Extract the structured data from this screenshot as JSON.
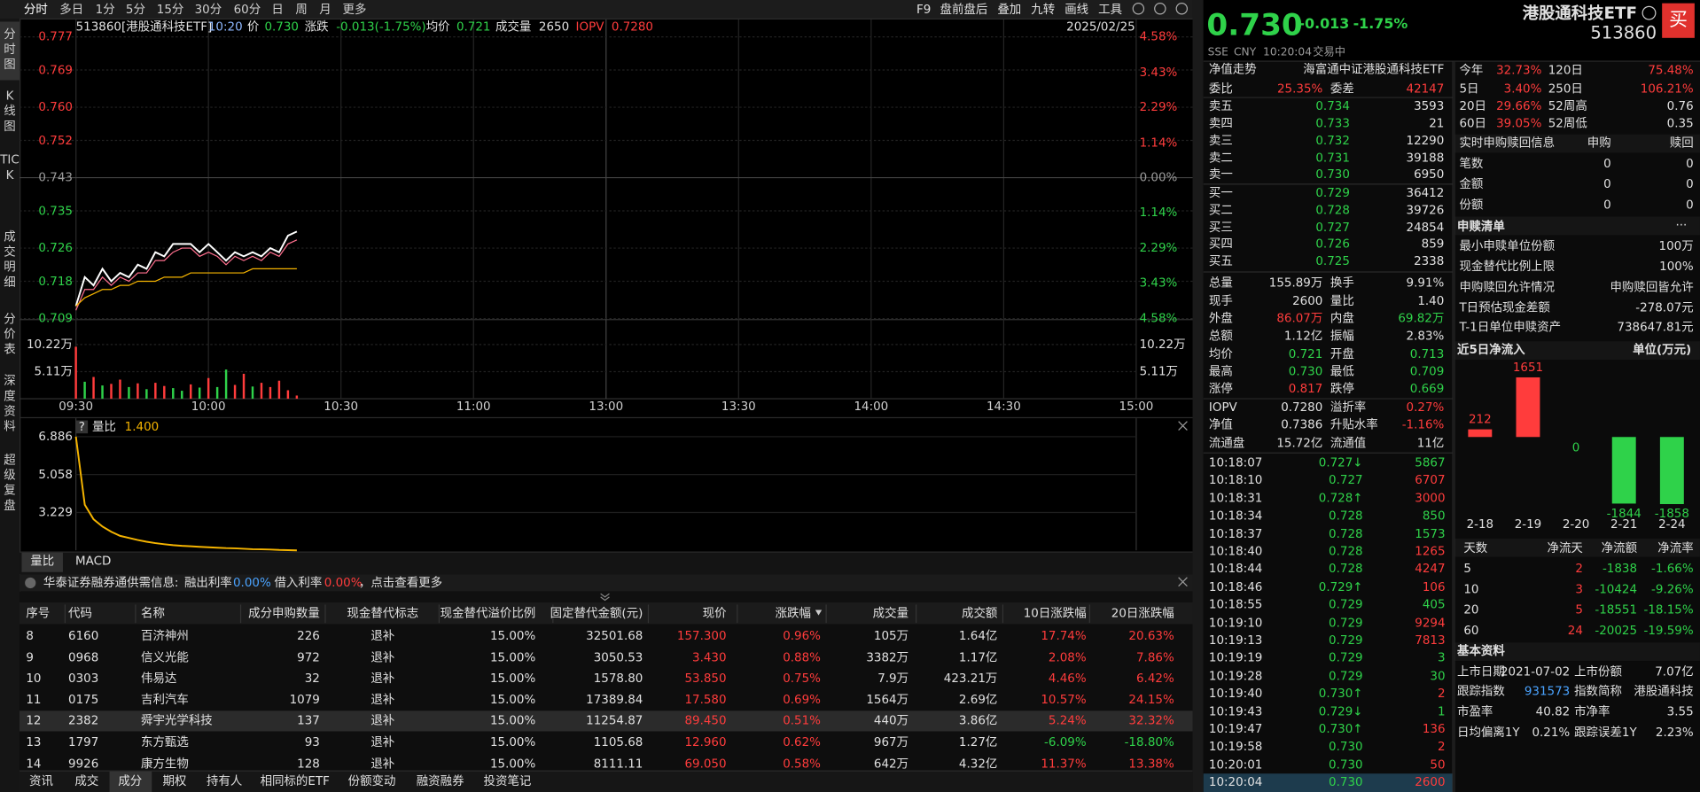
{
  "toolbar": {
    "periods": [
      "分时",
      "多日",
      "1分",
      "5分",
      "15分",
      "30分",
      "60分",
      "日",
      "周",
      "月",
      "更多"
    ],
    "tools": [
      "F9",
      "盘前盘后",
      "叠加",
      "九转",
      "画线",
      "工具"
    ]
  },
  "side_tabs": [
    "分时图",
    "K线图",
    "TICK",
    "成交明细",
    "分价表",
    "深度资料",
    "超级复盘"
  ],
  "quote_bar": {
    "items": [
      "513860[港股通科技ETF]",
      "10:20",
      "价",
      "0.730",
      "涨跌",
      "-0.013(-1.75%)",
      "均价",
      "0.721",
      "成交量",
      "2650",
      "IOPV",
      "0.7280"
    ],
    "date": "2025/02/25"
  },
  "chart_data": [
    {
      "type": "line",
      "grid": true,
      "x": [
        0,
        2,
        4,
        6,
        8,
        10,
        12,
        14,
        16,
        18,
        20,
        22,
        24,
        26,
        28,
        30,
        32,
        34,
        36,
        38,
        40,
        42,
        44,
        46,
        48,
        50
      ],
      "series": [
        {
          "color": "#ffffff",
          "values": [
            0.712,
            0.719,
            0.717,
            0.721,
            0.718,
            0.72,
            0.719,
            0.722,
            0.721,
            0.725,
            0.724,
            0.727,
            0.727,
            0.727,
            0.725,
            0.727,
            0.725,
            0.723,
            0.725,
            0.724,
            0.725,
            0.724,
            0.726,
            0.725,
            0.729,
            0.73
          ]
        },
        {
          "color": "#ff6f8e",
          "values": [
            0.711,
            0.716,
            0.716,
            0.719,
            0.717,
            0.719,
            0.718,
            0.72,
            0.72,
            0.723,
            0.723,
            0.725,
            0.726,
            0.726,
            0.724,
            0.725,
            0.724,
            0.722,
            0.724,
            0.723,
            0.724,
            0.723,
            0.725,
            0.724,
            0.727,
            0.728
          ]
        },
        {
          "color": "#f5b400",
          "values": [
            0.712,
            0.714,
            0.715,
            0.716,
            0.716,
            0.717,
            0.717,
            0.718,
            0.718,
            0.718,
            0.719,
            0.719,
            0.719,
            0.72,
            0.72,
            0.72,
            0.72,
            0.72,
            0.72,
            0.72,
            0.721,
            0.721,
            0.721,
            0.721,
            0.721,
            0.721
          ]
        }
      ],
      "xlim": [
        0,
        240
      ],
      "xticks": [
        {
          "value": 0,
          "label": "09:30"
        },
        {
          "value": 30,
          "label": "10:00"
        },
        {
          "value": 60,
          "label": "10:30"
        },
        {
          "value": 90,
          "label": "11:00"
        },
        {
          "value": 120,
          "label": "13:00"
        },
        {
          "value": 150,
          "label": "13:30"
        },
        {
          "value": 180,
          "label": "14:00"
        },
        {
          "value": 210,
          "label": "14:30"
        },
        {
          "value": 240,
          "label": "15:00"
        }
      ],
      "ylim": [
        0.709,
        0.777
      ],
      "yticks": [
        0.709,
        0.718,
        0.726,
        0.735,
        0.743,
        0.752,
        {
          "value": 0.76,
          "label": "0.760"
        },
        0.769,
        0.777
      ],
      "y2lim": [
        -4.58,
        4.58
      ],
      "y2ticks": [
        {
          "value": -4.58,
          "label": "4.58%"
        },
        {
          "value": -3.43,
          "label": "3.43%"
        },
        {
          "value": -2.29,
          "label": "2.29%"
        },
        {
          "value": -1.14,
          "label": "1.14%"
        },
        {
          "value": 0,
          "label": "0.00%"
        },
        {
          "value": 1.14,
          "label": "1.14%"
        },
        {
          "value": 2.29,
          "label": "2.29%"
        },
        {
          "value": 3.43,
          "label": "3.43%"
        },
        {
          "value": 4.58,
          "label": "4.58%"
        }
      ]
    },
    {
      "type": "bar",
      "x": [
        0,
        2,
        4,
        6,
        8,
        10,
        12,
        14,
        16,
        18,
        20,
        22,
        24,
        26,
        28,
        30,
        32,
        34,
        36,
        38,
        40,
        42,
        44,
        46,
        48,
        50
      ],
      "series": [
        {
          "color": "#ff3c3c",
          "values": [
            9.8,
            null,
            4.1,
            null,
            2.8,
            3.6,
            null,
            2.9,
            null,
            3.0,
            2.4,
            null,
            null,
            2.7,
            null,
            3.9,
            null,
            null,
            2.6,
            4.7,
            null,
            3.0,
            2.2,
            3.4,
            1.6,
            0.6
          ]
        },
        {
          "color": "#2fd24a",
          "values": [
            null,
            3.2,
            null,
            2.5,
            null,
            null,
            2.2,
            null,
            1.8,
            null,
            null,
            2.0,
            1.5,
            null,
            2.1,
            null,
            2.2,
            5.5,
            null,
            null,
            2.3,
            null,
            null,
            null,
            null,
            null
          ]
        }
      ],
      "xlim": [
        0,
        240
      ],
      "ylim": [
        0,
        14.92
      ],
      "yticks": [
        {
          "value": 5.11,
          "label": "5.11万"
        },
        {
          "value": 10.22,
          "label": "10.22万"
        }
      ]
    },
    {
      "type": "line",
      "title": "量比",
      "help": "?",
      "current": "1.400",
      "x": [
        0,
        2,
        4,
        6,
        8,
        10,
        12,
        14,
        16,
        18,
        20,
        22,
        24,
        26,
        28,
        30,
        32,
        34,
        36,
        38,
        40,
        42,
        44,
        46,
        48,
        50
      ],
      "series": [
        {
          "color": "#f5b400",
          "values": [
            6.886,
            3.6,
            2.9,
            2.55,
            2.3,
            2.1,
            2.0,
            1.9,
            1.82,
            1.75,
            1.7,
            1.65,
            1.62,
            1.6,
            1.57,
            1.55,
            1.53,
            1.51,
            1.5,
            1.48,
            1.46,
            1.45,
            1.44,
            1.42,
            1.41,
            1.4
          ]
        }
      ],
      "xlim": [
        0,
        240
      ],
      "ylim": [
        1.4,
        7.669
      ],
      "yticks": [
        3.229,
        5.058,
        6.886
      ]
    },
    {
      "type": "bar",
      "title": "近5日净流入",
      "unit": "单位(万元)",
      "categories": [
        "2-18",
        "2-19",
        "2-20",
        "2-21",
        "2-24"
      ],
      "values": [
        212,
        1651,
        0,
        -1844,
        -1858
      ],
      "colors": [
        "#ff3c3c",
        "#ff3c3c",
        "#2fd24a",
        "#2fd24a",
        "#2fd24a"
      ],
      "ylim": [
        -2000,
        1900
      ]
    }
  ],
  "chart_tabs": [
    "量比",
    "MACD"
  ],
  "notice": [
    "华泰证券融券通供需信息:",
    "融出利率",
    "0.00%",
    "借入利率",
    "0.00%",
    "，点击查看更多"
  ],
  "table": {
    "header": [
      "序号",
      "代码",
      "名称",
      "成分申购数量",
      "现金替代标志",
      "现金替代溢价比例",
      "固定替代金额(元)",
      "现价",
      "涨跌幅",
      "成交量",
      "成交额",
      "10日涨跌幅",
      "20日涨跌幅"
    ],
    "rows": [
      [
        "8",
        "6160",
        "百济神州",
        "226",
        "退补",
        "15.00%",
        "32501.68",
        "157.300",
        "0.96%",
        "105万",
        "1.64亿",
        "17.74%",
        "20.63%"
      ],
      [
        "9",
        "0968",
        "信义光能",
        "972",
        "退补",
        "15.00%",
        "3050.53",
        "3.430",
        "0.88%",
        "3382万",
        "1.17亿",
        "2.08%",
        "7.86%"
      ],
      [
        "10",
        "0303",
        "伟易达",
        "32",
        "退补",
        "15.00%",
        "1578.80",
        "53.850",
        "0.75%",
        "7.9万",
        "423.21万",
        "4.46%",
        "6.42%"
      ],
      [
        "11",
        "0175",
        "吉利汽车",
        "1079",
        "退补",
        "15.00%",
        "17389.84",
        "17.580",
        "0.69%",
        "1564万",
        "2.69亿",
        "10.57%",
        "24.15%"
      ],
      [
        "12",
        "2382",
        "舜宇光学科技",
        "137",
        "退补",
        "15.00%",
        "11254.87",
        "89.450",
        "0.51%",
        "440万",
        "3.86亿",
        "5.24%",
        "32.32%"
      ],
      [
        "13",
        "1797",
        "东方甄选",
        "93",
        "退补",
        "15.00%",
        "1105.68",
        "12.960",
        "0.62%",
        "967万",
        "1.27亿",
        "-6.09%",
        "-18.80%"
      ],
      [
        "14",
        "9926",
        "康方生物",
        "128",
        "退补",
        "15.00%",
        "8111.11",
        "69.050",
        "0.58%",
        "642万",
        "4.32亿",
        "11.37%",
        "13.38%"
      ]
    ]
  },
  "bottom_tabs": [
    "资讯",
    "成交",
    "成分",
    "期权",
    "持有人",
    "相同标的ETF",
    "份额变动",
    "融资融券",
    "投资笔记"
  ],
  "header": {
    "price": "0.730",
    "change": "-0.013",
    "change_pct": "-1.75%",
    "name": "港股通科技ETF",
    "code": "513860",
    "buy": "买",
    "status": [
      "SSE",
      "CNY",
      "10:20:04",
      "交易中"
    ]
  },
  "nav": [
    "净值走势",
    "海富通中证港股通科技ETF"
  ],
  "order_ratio": [
    "委比",
    "25.35%",
    "委差",
    "42147"
  ],
  "asks": [
    [
      "卖五",
      "0.734",
      "3593"
    ],
    [
      "卖四",
      "0.733",
      "21"
    ],
    [
      "卖三",
      "0.732",
      "12290"
    ],
    [
      "卖二",
      "0.731",
      "39188"
    ],
    [
      "卖一",
      "0.730",
      "6950"
    ]
  ],
  "bids": [
    [
      "买一",
      "0.729",
      "36412"
    ],
    [
      "买二",
      "0.728",
      "39726"
    ],
    [
      "买三",
      "0.727",
      "24854"
    ],
    [
      "买四",
      "0.726",
      "859"
    ],
    [
      "买五",
      "0.725",
      "2338"
    ]
  ],
  "stats": [
    [
      "总量",
      "155.89万",
      "换手",
      "9.91%"
    ],
    [
      "现手",
      "2600",
      "量比",
      "1.40"
    ],
    [
      "外盘",
      "86.07万",
      "内盘",
      "69.82万"
    ],
    [
      "总额",
      "1.12亿",
      "振幅",
      "2.83%"
    ],
    [
      "均价",
      "0.721",
      "开盘",
      "0.713"
    ],
    [
      "最高",
      "0.730",
      "最低",
      "0.709"
    ],
    [
      "涨停",
      "0.817",
      "跌停",
      "0.669"
    ]
  ],
  "nav_stats": [
    [
      "IOPV",
      "0.7280",
      "溢折率",
      "0.27%"
    ],
    [
      "净值",
      "0.7386",
      "升贴水率",
      "-1.16%"
    ],
    [
      "流通盘",
      "15.72亿",
      "流通值",
      "11亿"
    ]
  ],
  "trades": [
    [
      "10:18:07",
      "0.727↓",
      "5867"
    ],
    [
      "10:18:10",
      "0.727",
      "6707"
    ],
    [
      "10:18:31",
      "0.728↑",
      "3000"
    ],
    [
      "10:18:34",
      "0.728",
      "850"
    ],
    [
      "10:18:37",
      "0.728",
      "1573"
    ],
    [
      "10:18:40",
      "0.728",
      "1265"
    ],
    [
      "10:18:44",
      "0.728",
      "4247"
    ],
    [
      "10:18:46",
      "0.729↑",
      "106"
    ],
    [
      "10:18:55",
      "0.729",
      "405"
    ],
    [
      "10:19:10",
      "0.729",
      "9294"
    ],
    [
      "10:19:13",
      "0.729",
      "7813"
    ],
    [
      "10:19:19",
      "0.729",
      "3"
    ],
    [
      "10:19:28",
      "0.729",
      "30"
    ],
    [
      "10:19:40",
      "0.730↑",
      "2"
    ],
    [
      "10:19:43",
      "0.729↓",
      "1"
    ],
    [
      "10:19:47",
      "0.730↑",
      "136"
    ],
    [
      "10:19:58",
      "0.730",
      "2"
    ],
    [
      "10:20:01",
      "0.730",
      "50"
    ],
    [
      "10:20:04",
      "0.730",
      "2600"
    ]
  ],
  "performance": [
    [
      "今年",
      "32.73%",
      "120日",
      "75.48%"
    ],
    [
      "5日",
      "3.40%",
      "250日",
      "106.21%"
    ],
    [
      "20日",
      "29.66%",
      "52周高",
      "0.76"
    ],
    [
      "60日",
      "39.05%",
      "52周低",
      "0.35"
    ]
  ],
  "creation_redemption": {
    "header": [
      "实时申购赎回信息",
      "申购",
      "赎回"
    ],
    "rows": [
      [
        "笔数",
        "0",
        "0"
      ],
      [
        "金额",
        "0",
        "0"
      ],
      [
        "份额",
        "0",
        "0"
      ]
    ]
  },
  "creation_list": {
    "title": "申赎清单",
    "more": "···",
    "rows": [
      [
        "最小申赎单位份额",
        "100万"
      ],
      [
        "现金替代比例上限",
        "100%"
      ],
      [
        "申购赎回允许情况",
        "申购赎回皆允许"
      ],
      [
        "T日预估现金差额",
        "-278.07元"
      ],
      [
        "T-1日单位申赎资产",
        "738647.81元"
      ]
    ]
  },
  "flow_table": {
    "header": [
      "天数",
      "净流天",
      "净流额",
      "净流率"
    ],
    "rows": [
      [
        "5",
        "2",
        "-1838",
        "-1.66%"
      ],
      [
        "10",
        "3",
        "-10424",
        "-9.26%"
      ],
      [
        "20",
        "5",
        "-18551",
        "-18.15%"
      ],
      [
        "60",
        "24",
        "-20025",
        "-19.59%"
      ]
    ]
  },
  "basic_info": {
    "title": "基本资料",
    "rows": [
      [
        "上市日期",
        "2021-07-02",
        "上市份额",
        "7.07亿"
      ],
      [
        "跟踪指数",
        "931573",
        "指数简称",
        "港股通科技"
      ],
      [
        "市盈率",
        "40.82",
        "市净率",
        "3.55"
      ],
      [
        "日均偏离1Y",
        "0.21%",
        "跟踪误差1Y",
        "2.23%"
      ]
    ]
  }
}
